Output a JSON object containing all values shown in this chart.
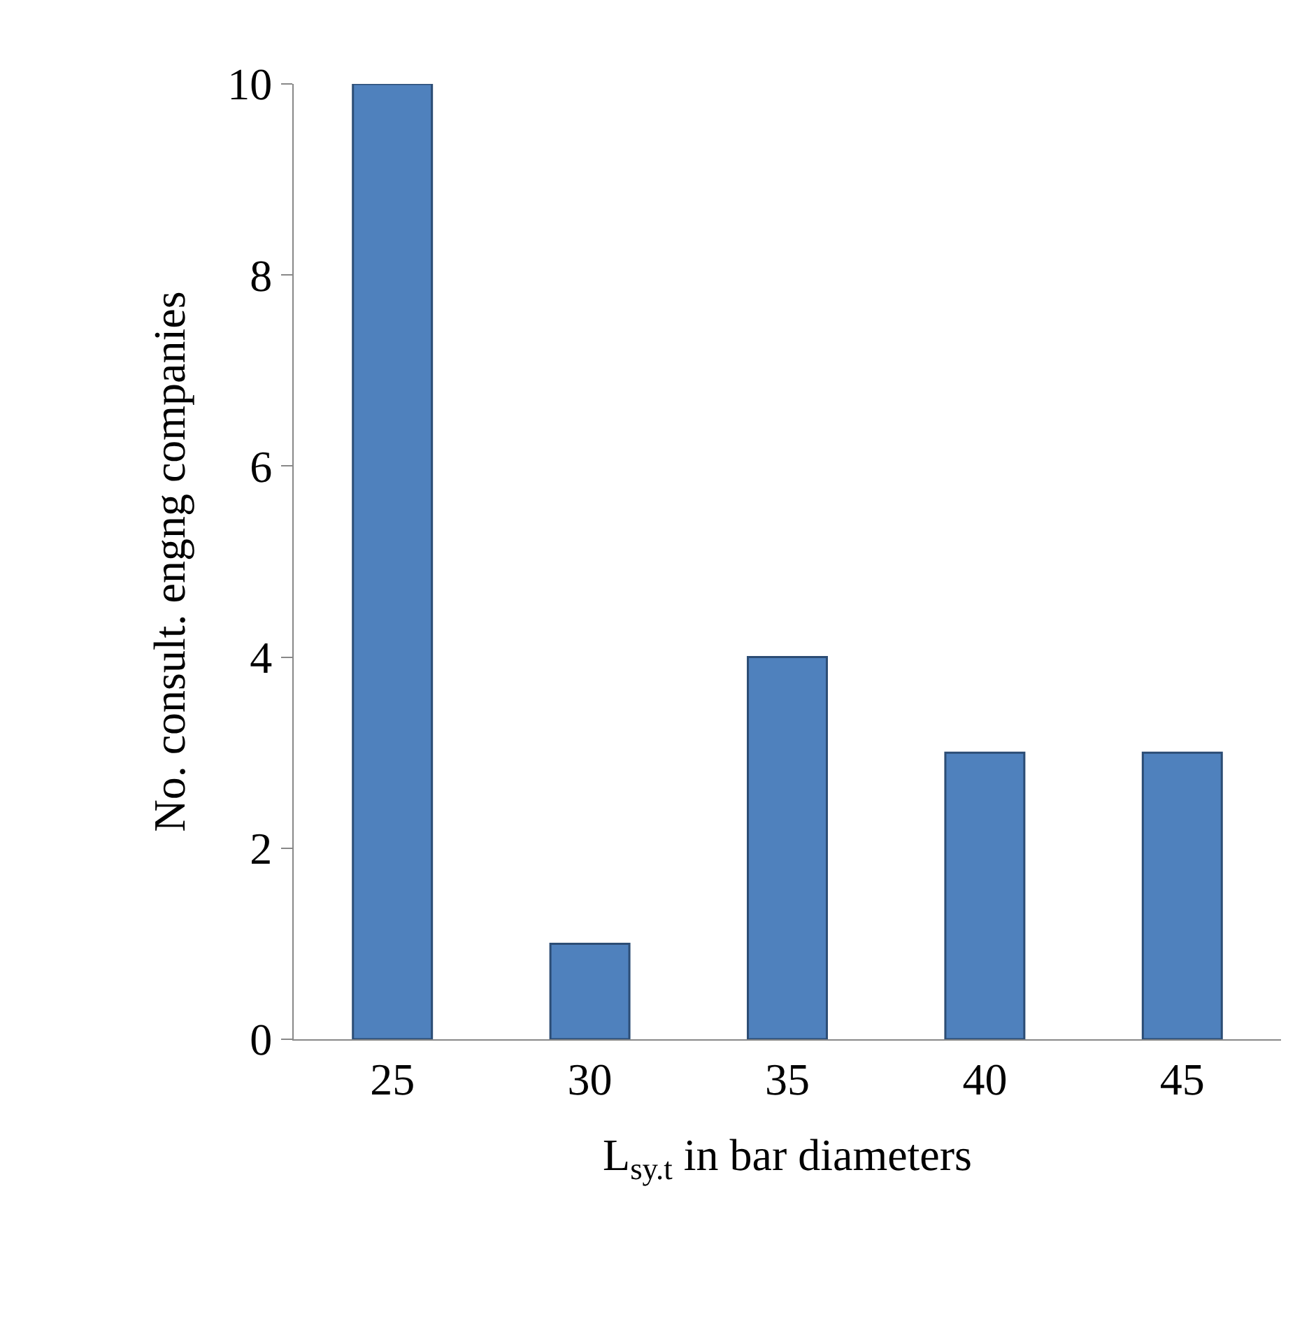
{
  "chart_data": {
    "type": "bar",
    "xlabel": "L$_{sy.t}$ in bar diameters",
    "ylabel": "No. consult. engng companies",
    "categories": [
      "25",
      "30",
      "35",
      "40",
      "45"
    ],
    "values": [
      10,
      1,
      4,
      3,
      3
    ],
    "color": "#4f81bd",
    "ylim": [
      0,
      10
    ],
    "yticks": [
      0,
      2,
      4,
      6,
      8,
      10
    ],
    "grid": false
  }
}
